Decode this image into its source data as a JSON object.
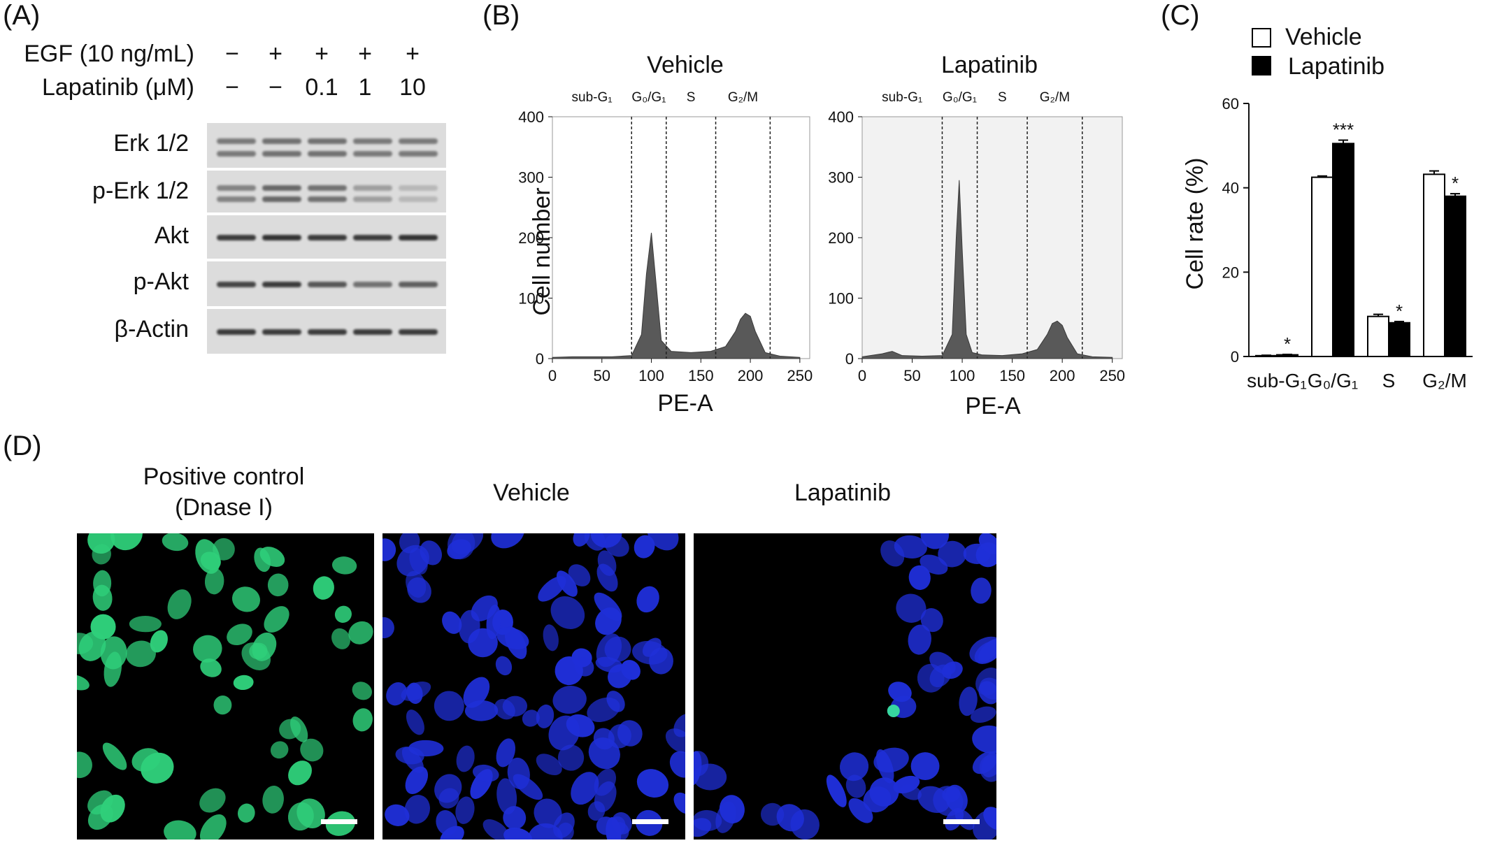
{
  "panels": {
    "a": {
      "letter": "(A)",
      "treatments": [
        {
          "label": "EGF (10 ng/mL)",
          "values": [
            "−",
            "+",
            "+",
            "+",
            "+"
          ]
        },
        {
          "label": "Lapatinib (μM)",
          "values": [
            "−",
            "−",
            "0.1",
            "1",
            "10"
          ]
        }
      ],
      "blots": [
        {
          "label": "Erk 1/2",
          "intensity": [
            0.55,
            0.6,
            0.6,
            0.55,
            0.55
          ]
        },
        {
          "label": "p-Erk 1/2",
          "intensity": [
            0.5,
            0.65,
            0.6,
            0.35,
            0.2
          ]
        },
        {
          "label": "Akt",
          "intensity": [
            0.9,
            0.95,
            0.9,
            0.9,
            0.95
          ]
        },
        {
          "label": "p-Akt",
          "intensity": [
            0.85,
            0.9,
            0.75,
            0.6,
            0.7
          ]
        },
        {
          "label": "β-Actin",
          "intensity": [
            0.9,
            0.9,
            0.9,
            0.9,
            0.9
          ]
        }
      ]
    },
    "b": {
      "letter": "(B)",
      "ylabel": "Cell number",
      "xlabel": "PE-A",
      "yticks": [
        "0",
        "100",
        "200",
        "300",
        "400"
      ],
      "xticks": [
        "0",
        "50",
        "100",
        "150",
        "200",
        "250"
      ],
      "gates": [
        "sub-G₁",
        "G₀/G₁",
        "S",
        "G₂/M"
      ],
      "plots": [
        {
          "title": "Vehicle",
          "g1_peak": 208,
          "g2_peak": 75
        },
        {
          "title": "Lapatinib",
          "g1_peak": 295,
          "g2_peak": 62
        }
      ]
    },
    "c": {
      "letter": "(C)",
      "legend": [
        "Vehicle",
        "Lapatinib"
      ],
      "ylabel": "Cell rate (%)",
      "yticks": [
        "0",
        "20",
        "40",
        "60"
      ],
      "categories": [
        "sub-G₁",
        "G₀/G₁",
        "S",
        "G₂/M"
      ],
      "significance": [
        "*",
        "***",
        "*",
        "*"
      ]
    },
    "d": {
      "letter": "(D)",
      "images": [
        {
          "title_line1": "Positive control",
          "title_line2": "(Dnase I)",
          "stain": "#2fcf7a"
        },
        {
          "title_line1": "Vehicle",
          "title_line2": "",
          "stain": "#1f2fd8"
        },
        {
          "title_line1": "Lapatinib",
          "title_line2": "",
          "stain": "#1f2fd8"
        }
      ]
    }
  },
  "chart_data": [
    {
      "type": "area",
      "title": "Vehicle",
      "xlabel": "PE-A",
      "ylabel": "Cell number",
      "xlim": [
        0,
        260
      ],
      "ylim": [
        0,
        400
      ],
      "x": [
        0,
        20,
        40,
        60,
        80,
        90,
        95,
        100,
        105,
        110,
        120,
        140,
        160,
        175,
        185,
        190,
        195,
        200,
        205,
        215,
        230,
        250
      ],
      "y": [
        2,
        3,
        3,
        3,
        5,
        40,
        140,
        208,
        120,
        30,
        12,
        10,
        12,
        20,
        45,
        65,
        75,
        70,
        45,
        10,
        4,
        2
      ]
    },
    {
      "type": "area",
      "title": "Lapatinib",
      "xlabel": "PE-A",
      "ylabel": "Cell number",
      "xlim": [
        0,
        260
      ],
      "ylim": [
        0,
        400
      ],
      "x": [
        0,
        20,
        30,
        40,
        60,
        80,
        90,
        94,
        97,
        100,
        104,
        110,
        120,
        140,
        160,
        175,
        185,
        190,
        195,
        200,
        205,
        215,
        230,
        250
      ],
      "y": [
        3,
        8,
        12,
        5,
        4,
        5,
        40,
        200,
        295,
        180,
        40,
        10,
        6,
        5,
        8,
        15,
        40,
        58,
        62,
        55,
        35,
        8,
        3,
        2
      ]
    },
    {
      "type": "bar",
      "categories": [
        "sub-G₁",
        "G₀/G₁",
        "S",
        "G₂/M"
      ],
      "ylabel": "Cell rate (%)",
      "ylim": [
        0,
        60
      ],
      "series": [
        {
          "name": "Vehicle",
          "values": [
            0.2,
            42.5,
            9.5,
            43.2
          ],
          "errors": [
            0.1,
            0.3,
            0.5,
            0.8
          ]
        },
        {
          "name": "Lapatinib",
          "values": [
            0.4,
            50.5,
            8.0,
            38.0
          ],
          "errors": [
            0.1,
            0.8,
            0.3,
            0.6
          ]
        }
      ]
    }
  ]
}
